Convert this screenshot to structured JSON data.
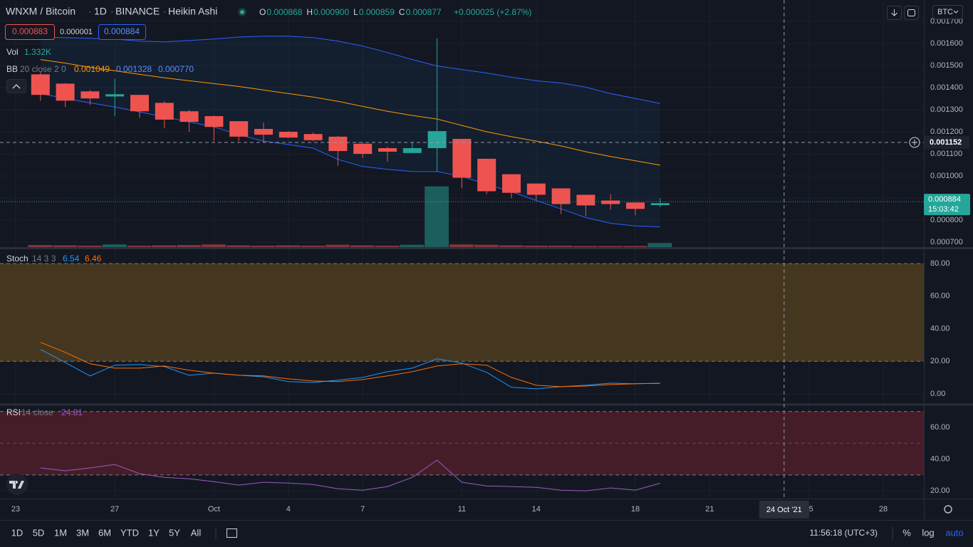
{
  "header": {
    "symbol": "WNXM / Bitcoin",
    "interval": "1D",
    "exchange": "BINANCE",
    "chart_style": "Heikin Ashi",
    "ohlc": [
      {
        "key": "O",
        "value": "0.000868"
      },
      {
        "key": "H",
        "value": "0.000900"
      },
      {
        "key": "L",
        "value": "0.000859"
      },
      {
        "key": "C",
        "value": "0.000877"
      }
    ],
    "change": "+0.000025 (+2.87%)"
  },
  "order_panel": {
    "sell": "0.000883",
    "spread": "0.000001",
    "buy": "0.000884"
  },
  "currency": "BTC",
  "toolbar": {
    "ranges": [
      "1D",
      "5D",
      "1M",
      "3M",
      "6M",
      "YTD",
      "1Y",
      "5Y",
      "All"
    ],
    "clock": "11:56:18 (UTC+3)",
    "options": [
      "%",
      "log",
      "auto"
    ]
  },
  "chart_data": [
    {
      "type": "candlestick",
      "x": [
        "2021-09-24",
        "2021-09-25",
        "2021-09-26",
        "2021-09-27",
        "2021-09-28",
        "2021-09-29",
        "2021-09-30",
        "2021-10-01",
        "2021-10-02",
        "2021-10-03",
        "2021-10-04",
        "2021-10-05",
        "2021-10-06",
        "2021-10-07",
        "2021-10-08",
        "2021-10-09",
        "2021-10-10",
        "2021-10-11",
        "2021-10-12",
        "2021-10-13",
        "2021-10-14",
        "2021-10-15",
        "2021-10-16",
        "2021-10-17",
        "2021-10-18",
        "2021-10-19"
      ],
      "open": [
        0.00146,
        0.001418,
        0.001383,
        0.00136,
        0.001367,
        0.001331,
        0.001293,
        0.001271,
        0.001248,
        0.001213,
        0.0012,
        0.00119,
        0.001178,
        0.001146,
        0.001126,
        0.001104,
        0.001126,
        0.001168,
        0.001078,
        0.001008,
        0.000966,
        0.000944,
        0.000915,
        0.000889,
        0.00088,
        0.000868
      ],
      "high": [
        0.00147,
        0.001421,
        0.001389,
        0.00144,
        0.001367,
        0.001338,
        0.0013,
        0.001274,
        0.001248,
        0.001242,
        0.001203,
        0.001197,
        0.001181,
        0.001149,
        0.001133,
        0.001155,
        0.001623,
        0.001168,
        0.001078,
        0.001008,
        0.000966,
        0.000944,
        0.000915,
        0.000918,
        0.00088,
        0.0009
      ],
      "low": [
        0.00134,
        0.001312,
        0.001322,
        0.00127,
        0.001264,
        0.001216,
        0.0012,
        0.001158,
        0.001158,
        0.001152,
        0.001171,
        0.001158,
        0.001046,
        0.001081,
        0.001065,
        0.00111,
        0.00102,
        0.000944,
        0.000918,
        0.000899,
        0.000892,
        0.000828,
        0.000819,
        0.000847,
        0.000822,
        0.000859
      ],
      "close": [
        0.001367,
        0.001341,
        0.001351,
        0.00137,
        0.001293,
        0.001255,
        0.001245,
        0.001222,
        0.001178,
        0.001187,
        0.001174,
        0.001162,
        0.001113,
        0.0011,
        0.00111,
        0.001126,
        0.001203,
        0.000992,
        0.000931,
        0.000924,
        0.000915,
        0.000873,
        0.000867,
        0.000873,
        0.000851,
        0.000877
      ],
      "up_color": "#26a69a",
      "down_color": "#ef5350",
      "xlim": [
        "2021-09-22",
        "2021-10-30"
      ],
      "xticks": [
        {
          "value": "2021-09-23",
          "label": "23"
        },
        {
          "value": "2021-09-27",
          "label": "27"
        },
        {
          "value": "2021-10-01",
          "label": "Oct"
        },
        {
          "value": "2021-10-04",
          "label": "4"
        },
        {
          "value": "2021-10-07",
          "label": "7"
        },
        {
          "value": "2021-10-11",
          "label": "11"
        },
        {
          "value": "2021-10-14",
          "label": "14"
        },
        {
          "value": "2021-10-18",
          "label": "18"
        },
        {
          "value": "2021-10-21",
          "label": "21"
        },
        {
          "value": "2021-10-25",
          "label": "25"
        },
        {
          "value": "2021-10-28",
          "label": "28"
        }
      ],
      "ylim": [
        0.000678,
        0.00179
      ],
      "yticks": [
        {
          "value": 0.0007,
          "label": "0.000700"
        },
        {
          "value": 0.0008,
          "label": "0.000800"
        },
        {
          "value": 0.0009,
          "label": "0.000900"
        },
        {
          "value": 0.001,
          "label": "0.001000"
        },
        {
          "value": 0.0011,
          "label": "0.001100"
        },
        {
          "value": 0.0012,
          "label": "0.001200"
        },
        {
          "value": 0.0013,
          "label": "0.001300"
        },
        {
          "value": 0.0014,
          "label": "0.001400"
        },
        {
          "value": 0.0015,
          "label": "0.001500"
        },
        {
          "value": 0.0016,
          "label": "0.001600"
        },
        {
          "value": 0.0017,
          "label": "0.001700"
        }
      ],
      "grid": true,
      "last_price": 0.000884,
      "countdown": "15:03:42",
      "crosshair_y": 0.001152,
      "crosshair_x": {
        "value": "2021-10-24",
        "label": "24 Oct '21"
      },
      "volume": {
        "label": "Vol",
        "last": "1.332K",
        "ylim": [
          0,
          80000
        ],
        "values": [
          700,
          600,
          500,
          900,
          500,
          600,
          700,
          900,
          600,
          500,
          600,
          500,
          800,
          600,
          500,
          800,
          19800,
          900,
          800,
          600,
          500,
          500,
          400,
          400,
          400,
          1332
        ]
      },
      "bb": {
        "label": "BB",
        "params": "20 close 2 0",
        "values_text": [
          "0.001049",
          "0.001328",
          "0.000770"
        ],
        "fill": "#2196f3",
        "basis": {
          "color": "#ff9800",
          "values": [
            0.001527,
            0.001511,
            0.001492,
            0.001476,
            0.00146,
            0.001444,
            0.001431,
            0.001418,
            0.001405,
            0.001389,
            0.001373,
            0.001357,
            0.001338,
            0.001315,
            0.001293,
            0.001274,
            0.001258,
            0.001229,
            0.0012,
            0.001178,
            0.001158,
            0.001136,
            0.00111,
            0.001088,
            0.001069,
            0.001049
          ]
        },
        "upper": {
          "color": "#2962ff",
          "values": [
            0.001629,
            0.001626,
            0.001623,
            0.00162,
            0.00161,
            0.001607,
            0.001613,
            0.00162,
            0.001629,
            0.001633,
            0.001633,
            0.001626,
            0.00161,
            0.001588,
            0.001559,
            0.001527,
            0.001498,
            0.001482,
            0.001466,
            0.001447,
            0.001431,
            0.001421,
            0.001402,
            0.001373,
            0.001351,
            0.001328
          ]
        },
        "lower": {
          "color": "#2962ff",
          "values": [
            0.001373,
            0.001351,
            0.001331,
            0.001312,
            0.00129,
            0.001267,
            0.001245,
            0.001222,
            0.001187,
            0.001158,
            0.001142,
            0.001126,
            0.001075,
            0.001043,
            0.00103,
            0.00102,
            0.00102,
            0.000998,
            0.000963,
            0.000928,
            0.000889,
            0.000851,
            0.000812,
            0.000786,
            0.000774,
            0.00077
          ]
        }
      }
    },
    {
      "type": "line",
      "title": "Stoch",
      "params": "14 3 3",
      "x": [
        "2021-09-24",
        "2021-09-25",
        "2021-09-26",
        "2021-09-27",
        "2021-09-28",
        "2021-09-29",
        "2021-09-30",
        "2021-10-01",
        "2021-10-02",
        "2021-10-03",
        "2021-10-04",
        "2021-10-05",
        "2021-10-06",
        "2021-10-07",
        "2021-10-08",
        "2021-10-09",
        "2021-10-10",
        "2021-10-11",
        "2021-10-12",
        "2021-10-13",
        "2021-10-14",
        "2021-10-15",
        "2021-10-16",
        "2021-10-17",
        "2021-10-18",
        "2021-10-19"
      ],
      "series": [
        {
          "color": "#2196f3",
          "values": [
            27.3,
            19.3,
            11.0,
            17.6,
            18.0,
            16.7,
            11.4,
            12.7,
            11.4,
            10.5,
            7.5,
            7.0,
            8.4,
            10.1,
            13.6,
            15.8,
            21.5,
            18.9,
            13.2,
            4.0,
            3.1,
            4.4,
            5.3,
            6.6,
            6.2,
            6.54
          ]
        },
        {
          "color": "#ff6d00",
          "values": [
            31.6,
            25.5,
            18.5,
            15.8,
            15.8,
            17.1,
            14.5,
            12.7,
            11.4,
            11.0,
            9.2,
            7.9,
            7.5,
            8.8,
            11.0,
            13.6,
            17.1,
            18.5,
            17.6,
            10.1,
            5.3,
            4.4,
            4.8,
            5.7,
            6.2,
            6.46
          ]
        }
      ],
      "band": [
        20,
        80
      ],
      "band_color": "#45371f",
      "ylim": [
        -5.7,
        88.8
      ],
      "yticks": [
        {
          "value": 0,
          "label": "0.00"
        },
        {
          "value": 20,
          "label": "20.00"
        },
        {
          "value": 40,
          "label": "40.00"
        },
        {
          "value": 60,
          "label": "60.00"
        },
        {
          "value": 80,
          "label": "80.00"
        }
      ]
    },
    {
      "type": "line",
      "title": "RSI",
      "params": "14 close",
      "x": [
        "2021-09-24",
        "2021-09-25",
        "2021-09-26",
        "2021-09-27",
        "2021-09-28",
        "2021-09-29",
        "2021-09-30",
        "2021-10-01",
        "2021-10-02",
        "2021-10-03",
        "2021-10-04",
        "2021-10-05",
        "2021-10-06",
        "2021-10-07",
        "2021-10-08",
        "2021-10-09",
        "2021-10-10",
        "2021-10-11",
        "2021-10-12",
        "2021-10-13",
        "2021-10-14",
        "2021-10-15",
        "2021-10-16",
        "2021-10-17",
        "2021-10-18",
        "2021-10-19"
      ],
      "series": [
        {
          "color": "#9c5bbf",
          "values": [
            34.4,
            32.6,
            34.4,
            36.6,
            30.8,
            28.5,
            27.6,
            25.8,
            23.6,
            25.4,
            24.9,
            24.0,
            21.3,
            20.4,
            22.7,
            28.5,
            39.3,
            25.4,
            23.1,
            22.7,
            22.2,
            20.4,
            20.0,
            21.8,
            20.4,
            24.81
          ]
        }
      ],
      "band": [
        30,
        70
      ],
      "midline": 50,
      "band_color": "#451d28",
      "ylim": [
        15.1,
        73.5
      ],
      "yticks": [
        {
          "value": 20,
          "label": "20.00"
        },
        {
          "value": 40,
          "label": "40.00"
        },
        {
          "value": 60,
          "label": "60.00"
        }
      ]
    }
  ]
}
